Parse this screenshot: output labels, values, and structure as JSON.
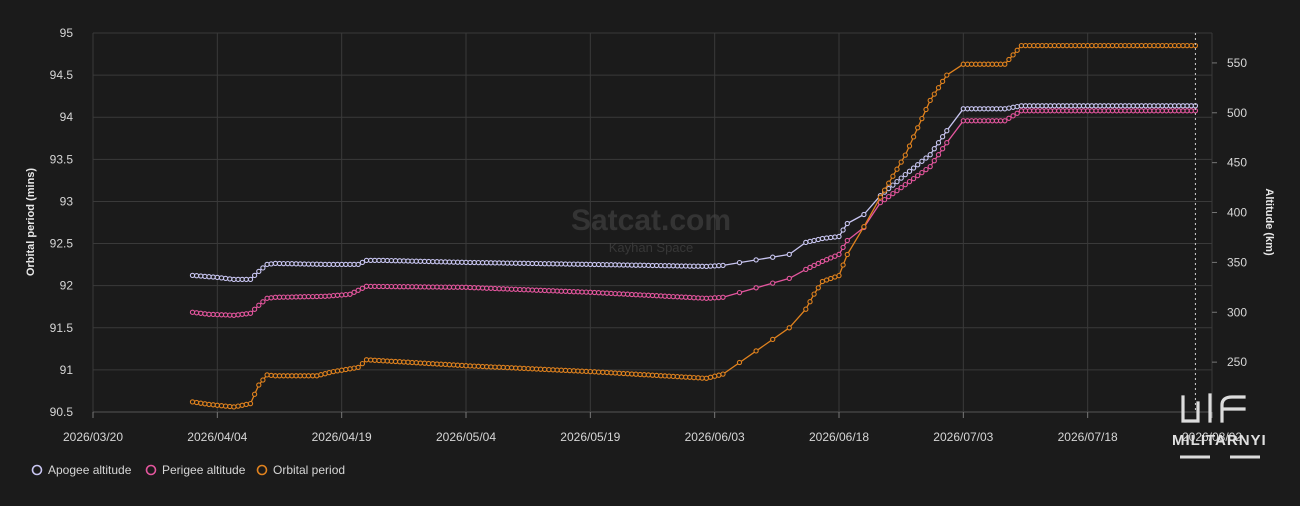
{
  "watermark": {
    "title": "Satcat.com",
    "subtitle": "Kayhan Space"
  },
  "logo": {
    "text": "MILITARNYI"
  },
  "colors": {
    "background": "#1b1b1b",
    "grid": "#3a3a3a",
    "apogee": "#c9c6f2",
    "perigee": "#e4569e",
    "period": "#e0821e",
    "marker_line": "#cfcfcf"
  },
  "chart_data": {
    "type": "line",
    "title": "",
    "x_axis": {
      "type": "date",
      "range": [
        "2026-03-20",
        "2026-08-02"
      ],
      "tick_labels": [
        "2026/03/20",
        "2026/04/04",
        "2026/04/19",
        "2026/05/04",
        "2026/05/19",
        "2026/06/03",
        "2026/06/18",
        "2026/07/03",
        "2026/07/18",
        "2026/08/02"
      ]
    },
    "y_left": {
      "label": "Orbital period (mins)",
      "range": [
        90.5,
        95
      ],
      "tick_labels": [
        "90.5",
        "91",
        "91.5",
        "92",
        "92.5",
        "93",
        "93.5",
        "94",
        "94.5",
        "95"
      ]
    },
    "y_right": {
      "label": "Altitude (km)",
      "range": [
        200,
        580
      ],
      "tick_labels": [
        "250",
        "300",
        "350",
        "400",
        "450",
        "500",
        "550"
      ]
    },
    "grid": true,
    "legend_position": "bottom-left",
    "current_date_marker": "2026-07-31",
    "series": [
      {
        "name": "Apogee altitude",
        "axis": "right",
        "color_key": "apogee",
        "points": [
          [
            "2026-04-01",
            337
          ],
          [
            "2026-04-04",
            335
          ],
          [
            "2026-04-06",
            333
          ],
          [
            "2026-04-08",
            333
          ],
          [
            "2026-04-09",
            341
          ],
          [
            "2026-04-10",
            348
          ],
          [
            "2026-04-11",
            349
          ],
          [
            "2026-04-17",
            348
          ],
          [
            "2026-04-21",
            348
          ],
          [
            "2026-04-22",
            352
          ],
          [
            "2026-04-24",
            352
          ],
          [
            "2026-05-04",
            350
          ],
          [
            "2026-05-19",
            348
          ],
          [
            "2026-06-02",
            346
          ],
          [
            "2026-06-04",
            347
          ],
          [
            "2026-06-12",
            358
          ],
          [
            "2026-06-14",
            370
          ],
          [
            "2026-06-15",
            372
          ],
          [
            "2026-06-16",
            374
          ],
          [
            "2026-06-18",
            376
          ],
          [
            "2026-06-19",
            389
          ],
          [
            "2026-06-21",
            398
          ],
          [
            "2026-06-23",
            417
          ],
          [
            "2026-06-26",
            438
          ],
          [
            "2026-06-29",
            458
          ],
          [
            "2026-07-01",
            482
          ],
          [
            "2026-07-03",
            504
          ],
          [
            "2026-07-08",
            504
          ],
          [
            "2026-07-10",
            507
          ],
          [
            "2026-07-31",
            507
          ]
        ]
      },
      {
        "name": "Perigee altitude",
        "axis": "right",
        "color_key": "perigee",
        "points": [
          [
            "2026-04-01",
            300
          ],
          [
            "2026-04-03",
            298
          ],
          [
            "2026-04-06",
            297
          ],
          [
            "2026-04-08",
            299
          ],
          [
            "2026-04-09",
            307
          ],
          [
            "2026-04-10",
            314
          ],
          [
            "2026-04-11",
            315
          ],
          [
            "2026-04-17",
            316
          ],
          [
            "2026-04-20",
            318
          ],
          [
            "2026-04-21",
            322
          ],
          [
            "2026-04-22",
            326
          ],
          [
            "2026-05-04",
            325
          ],
          [
            "2026-05-19",
            320
          ],
          [
            "2026-06-02",
            314
          ],
          [
            "2026-06-04",
            315
          ],
          [
            "2026-06-12",
            334
          ],
          [
            "2026-06-14",
            343
          ],
          [
            "2026-06-15",
            347
          ],
          [
            "2026-06-16",
            351
          ],
          [
            "2026-06-18",
            358
          ],
          [
            "2026-06-19",
            372
          ],
          [
            "2026-06-21",
            385
          ],
          [
            "2026-06-23",
            410
          ],
          [
            "2026-06-26",
            428
          ],
          [
            "2026-06-29",
            446
          ],
          [
            "2026-07-01",
            470
          ],
          [
            "2026-07-03",
            492
          ],
          [
            "2026-07-08",
            492
          ],
          [
            "2026-07-10",
            502
          ],
          [
            "2026-07-31",
            502
          ]
        ]
      },
      {
        "name": "Orbital period",
        "axis": "left",
        "color_key": "period",
        "points": [
          [
            "2026-04-01",
            90.62
          ],
          [
            "2026-04-03",
            90.59
          ],
          [
            "2026-04-06",
            90.56
          ],
          [
            "2026-04-08",
            90.6
          ],
          [
            "2026-04-09",
            90.82
          ],
          [
            "2026-04-10",
            90.94
          ],
          [
            "2026-04-11",
            90.93
          ],
          [
            "2026-04-16",
            90.93
          ],
          [
            "2026-04-18",
            90.98
          ],
          [
            "2026-04-21",
            91.03
          ],
          [
            "2026-04-22",
            91.12
          ],
          [
            "2026-05-04",
            91.05
          ],
          [
            "2026-05-19",
            90.98
          ],
          [
            "2026-06-02",
            90.9
          ],
          [
            "2026-06-04",
            90.95
          ],
          [
            "2026-06-12",
            91.5
          ],
          [
            "2026-06-14",
            91.72
          ],
          [
            "2026-06-15",
            91.9
          ],
          [
            "2026-06-16",
            92.05
          ],
          [
            "2026-06-18",
            92.12
          ],
          [
            "2026-06-19",
            92.37
          ],
          [
            "2026-06-21",
            92.7
          ],
          [
            "2026-06-23",
            93.05
          ],
          [
            "2026-06-26",
            93.55
          ],
          [
            "2026-06-29",
            94.2
          ],
          [
            "2026-07-01",
            94.5
          ],
          [
            "2026-07-03",
            94.63
          ],
          [
            "2026-07-08",
            94.63
          ],
          [
            "2026-07-10",
            94.85
          ],
          [
            "2026-07-31",
            94.85
          ]
        ]
      }
    ]
  }
}
